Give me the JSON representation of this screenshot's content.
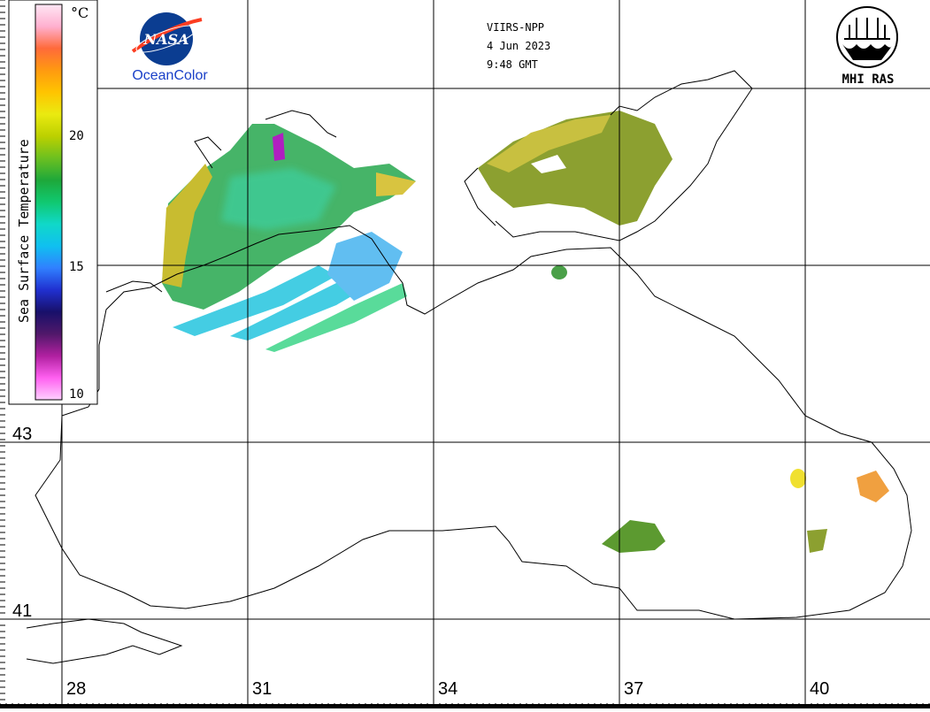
{
  "header": {
    "satellite": "VIIRS-NPP",
    "date": "4 Jun 2023",
    "time": "9:48 GMT"
  },
  "logos": {
    "nasa_text": "NASA",
    "oceancolor": "OceanColor",
    "mhi": "MHI RAS"
  },
  "colorbar": {
    "title": "Sea Surface Temperature",
    "unit": "°C",
    "ticks": [
      "20",
      "15",
      "10"
    ],
    "colors": [
      "#ffe6f4",
      "#ffb0d0",
      "#ff6a3a",
      "#ff9a10",
      "#ffc400",
      "#eaea10",
      "#bcd000",
      "#6cc020",
      "#1ea83a",
      "#10c870",
      "#10d8c8",
      "#10c0f0",
      "#3080ff",
      "#2030d0",
      "#18106a",
      "#50186a",
      "#b020a0",
      "#ff60f0",
      "#ffd0ff"
    ]
  },
  "lat_labels": [
    "43",
    "41"
  ],
  "lon_labels": [
    "28",
    "31",
    "34",
    "37",
    "40"
  ]
}
